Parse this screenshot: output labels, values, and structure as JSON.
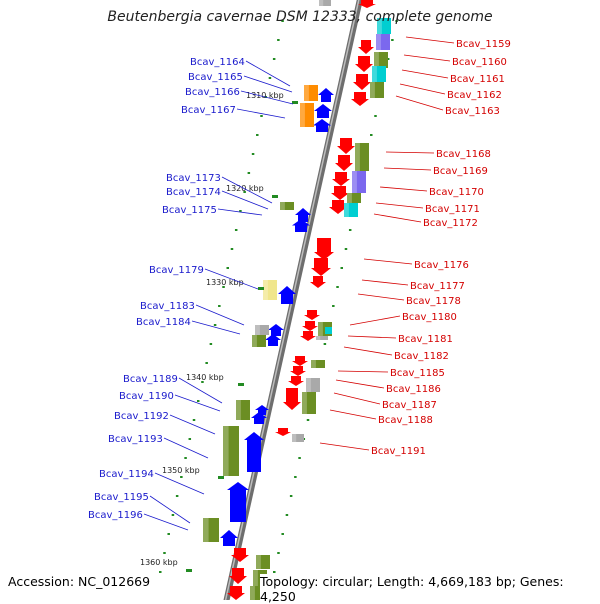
{
  "title": "Beutenbergia cavernae DSM 12333, complete genome",
  "accession": "Accession: NC_012669",
  "topology": "Topology: circular; Length: 4,669,183 bp; Genes: 4,250",
  "colors": {
    "backbone": "#8c8c8c",
    "label_left": "#1a1acc",
    "label_right": "#d40000",
    "gene_forward": "#0000ff",
    "gene_reverse": "#ff0000",
    "cog_olive": "#6b8e23",
    "cog_orange": "#ff8c00",
    "cog_purple": "#7b68ee",
    "cog_cyan": "#00ced1",
    "cog_yellow": "#f0e68c",
    "cog_gray": "#a9a9a9",
    "tick_mark": "#228b22"
  },
  "scale_ticks": [
    "1310 kbp",
    "1320 kbp",
    "1330 kbp",
    "1340 kbp",
    "1350 kbp",
    "1360 kbp"
  ],
  "left_genes": [
    "Bcav_1164",
    "Bcav_1165",
    "Bcav_1166",
    "Bcav_1167",
    "Bcav_1173",
    "Bcav_1174",
    "Bcav_1175",
    "Bcav_1179",
    "Bcav_1183",
    "Bcav_1184",
    "Bcav_1189",
    "Bcav_1190",
    "Bcav_1192",
    "Bcav_1193",
    "Bcav_1194",
    "Bcav_1195",
    "Bcav_1196"
  ],
  "right_genes": [
    "Bcav_1159",
    "Bcav_1160",
    "Bcav_1161",
    "Bcav_1162",
    "Bcav_1163",
    "Bcav_1168",
    "Bcav_1169",
    "Bcav_1170",
    "Bcav_1171",
    "Bcav_1172",
    "Bcav_1176",
    "Bcav_1177",
    "Bcav_1178",
    "Bcav_1180",
    "Bcav_1181",
    "Bcav_1182",
    "Bcav_1185",
    "Bcav_1186",
    "Bcav_1187",
    "Bcav_1188",
    "Bcav_1191"
  ]
}
